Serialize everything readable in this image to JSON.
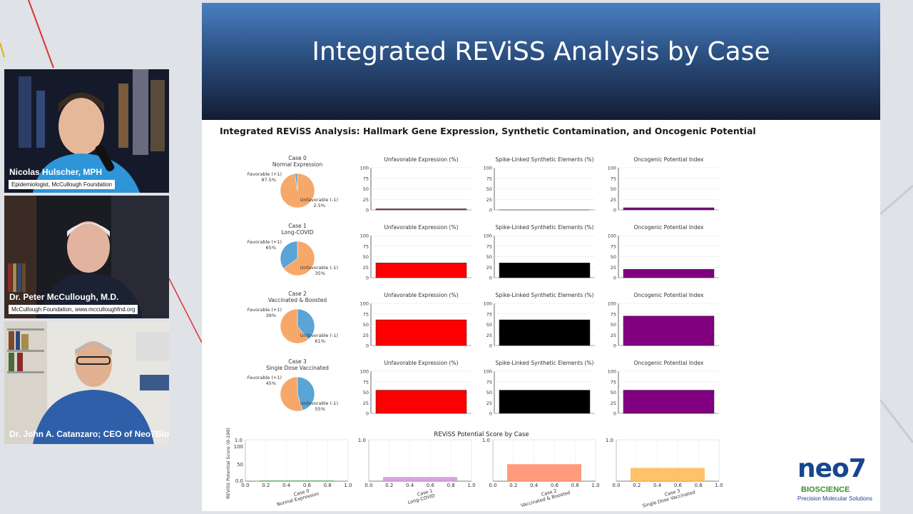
{
  "participants": [
    {
      "name": "Nicolas Hulscher, MPH",
      "subtitle": "Epidemiologist, McCullough Foundation"
    },
    {
      "name": "Dr. Peter McCullough, M.D.",
      "subtitle": "McCullough Foundation, www.mcculloughfnd.org"
    },
    {
      "name": "Dr. John A. Catanzaro; CEO of Neo7Bio...",
      "subtitle": ""
    }
  ],
  "slide": {
    "title": "Integrated REViSS Analysis by Case",
    "figure_title": "Integrated REViSS Analysis: Hallmark Gene Expression, Synthetic Contamination, and Oncogenic Potential"
  },
  "logo": {
    "wordmark": "neo7",
    "line1": "BIOSCIENCE",
    "line2": "Precision Molecular Solutions"
  },
  "chart_data": [
    {
      "type": "pie",
      "panels": [
        {
          "case": "Case 0",
          "label": "Normal Expression",
          "slices": [
            {
              "name": "Favorable (+1)",
              "value": 97.5,
              "text": "97.5%",
              "color": "#f6a86a"
            },
            {
              "name": "Unfavorable (-1)",
              "value": 2.5,
              "text": "2.5%",
              "color": "#5aa4d6"
            }
          ]
        },
        {
          "case": "Case 1",
          "label": "Long-COVID",
          "slices": [
            {
              "name": "Favorable (+1)",
              "value": 65,
              "text": "65%",
              "color": "#f6a86a"
            },
            {
              "name": "Unfavorable (-1)",
              "value": 35,
              "text": "35%",
              "color": "#5aa4d6"
            }
          ]
        },
        {
          "case": "Case 2",
          "label": "Vaccinated & Boosted",
          "slices": [
            {
              "name": "Favorable (+1)",
              "value": 39,
              "text": "39%",
              "color": "#5aa4d6"
            },
            {
              "name": "Unfavorable (-1)",
              "value": 61,
              "text": "61%",
              "color": "#f6a86a"
            }
          ]
        },
        {
          "case": "Case 3",
          "label": "Single Dose Vaccinated",
          "slices": [
            {
              "name": "Favorable (+1)",
              "value": 45,
              "text": "45%",
              "color": "#5aa4d6"
            },
            {
              "name": "Unfavorable (-1)",
              "value": 55,
              "text": "55%",
              "color": "#f6a86a"
            }
          ]
        }
      ]
    },
    {
      "type": "bar",
      "title": "Unfavorable Expression (%)",
      "color": "#ff0000",
      "categories": [
        "Case 0",
        "Case 1",
        "Case 2",
        "Case 3"
      ],
      "values": [
        2.5,
        35,
        61,
        55
      ],
      "ylim": [
        0,
        100
      ],
      "yticks": [
        "0",
        "25",
        "50",
        "75",
        "100"
      ]
    },
    {
      "type": "bar",
      "title": "Spike-Linked Synthetic Elements (%)",
      "color": "#000000",
      "categories": [
        "Case 0",
        "Case 1",
        "Case 2",
        "Case 3"
      ],
      "values": [
        0,
        35,
        61,
        55
      ],
      "ylim": [
        0,
        100
      ],
      "yticks": [
        "0",
        "25",
        "50",
        "75",
        "100"
      ]
    },
    {
      "type": "bar",
      "title": "Oncogenic Potential Index",
      "color": "#800080",
      "categories": [
        "Case 0",
        "Case 1",
        "Case 2",
        "Case 3"
      ],
      "values": [
        5,
        20,
        70,
        55
      ],
      "ylim": [
        0,
        100
      ],
      "yticks": [
        "0",
        "25",
        "50",
        "75",
        "100"
      ]
    },
    {
      "type": "bar",
      "title": "REViSS Potential Score by Case",
      "ylabel": "REViSS Potential Score (0-100)",
      "categories": [
        "Case 0\nNormal Expression",
        "Case 1\nLong-COVID",
        "Case 2\nVaccinated & Boosted",
        "Case 3\nSingle Dose Vaccinated"
      ],
      "values": [
        2,
        10,
        41,
        32
      ],
      "colors": [
        "#66bb6a",
        "#ce93d8",
        "#ff8a65",
        "#ffb74d"
      ],
      "ylim": [
        0,
        100
      ],
      "yticks": [
        "0.0",
        "50",
        "100"
      ],
      "inner_xticks": [
        "0.0",
        "0.2",
        "0.4",
        "0.6",
        "0.8",
        "1.0"
      ],
      "inner_ytick": "1.0"
    }
  ]
}
